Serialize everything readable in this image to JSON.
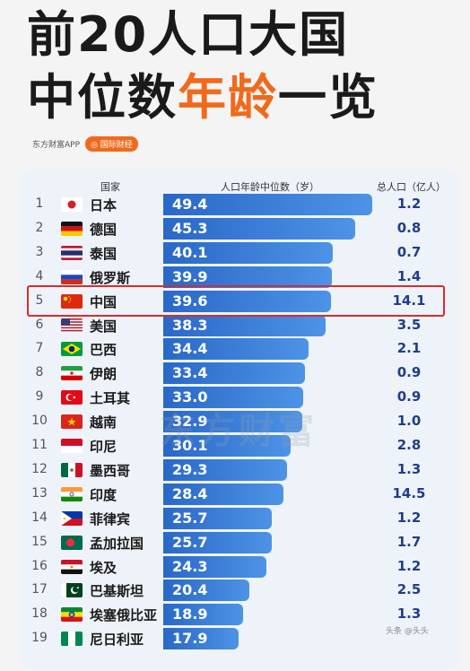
{
  "title": {
    "line1": "前20人口大国",
    "line2_pre": "中位数",
    "line2_hl": "年龄",
    "line2_post": "一览"
  },
  "source": {
    "name": "东方财富APP",
    "tag": "◎ 国际财经"
  },
  "headers": {
    "country": "国家",
    "median": "人口年龄中位数（岁）",
    "population": "总人口（亿人）"
  },
  "watermark": "东方财富",
  "footer": "头条 @头头",
  "colors": {
    "bar": "#2a68c8",
    "highlight": "#d62d2d",
    "accent": "#f06a1c"
  },
  "chart_data": {
    "type": "bar",
    "title": "前20人口大国中位数年龄一览",
    "orientation": "horizontal",
    "highlighted_rank": 5,
    "rows": [
      {
        "rank": "1",
        "country": "日本",
        "median_age": "49.4",
        "population": "1.2",
        "flag": "japan"
      },
      {
        "rank": "2",
        "country": "德国",
        "median_age": "45.3",
        "population": "0.8",
        "flag": "germany"
      },
      {
        "rank": "3",
        "country": "泰国",
        "median_age": "40.1",
        "population": "0.7",
        "flag": "thailand"
      },
      {
        "rank": "4",
        "country": "俄罗斯",
        "median_age": "39.9",
        "population": "1.4",
        "flag": "russia"
      },
      {
        "rank": "5",
        "country": "中国",
        "median_age": "39.6",
        "population": "14.1",
        "flag": "china"
      },
      {
        "rank": "6",
        "country": "美国",
        "median_age": "38.3",
        "population": "3.5",
        "flag": "usa"
      },
      {
        "rank": "7",
        "country": "巴西",
        "median_age": "34.4",
        "population": "2.1",
        "flag": "brazil"
      },
      {
        "rank": "8",
        "country": "伊朗",
        "median_age": "33.4",
        "population": "0.9",
        "flag": "iran"
      },
      {
        "rank": "9",
        "country": "土耳其",
        "median_age": "33.0",
        "population": "0.9",
        "flag": "turkey"
      },
      {
        "rank": "10",
        "country": "越南",
        "median_age": "32.9",
        "population": "1.0",
        "flag": "vietnam"
      },
      {
        "rank": "11",
        "country": "印尼",
        "median_age": "30.1",
        "population": "2.8",
        "flag": "indonesia"
      },
      {
        "rank": "12",
        "country": "墨西哥",
        "median_age": "29.3",
        "population": "1.3",
        "flag": "mexico"
      },
      {
        "rank": "13",
        "country": "印度",
        "median_age": "28.4",
        "population": "14.5",
        "flag": "india"
      },
      {
        "rank": "14",
        "country": "菲律宾",
        "median_age": "25.7",
        "population": "1.2",
        "flag": "philippines"
      },
      {
        "rank": "15",
        "country": "孟加拉国",
        "median_age": "25.7",
        "population": "1.7",
        "flag": "bangladesh"
      },
      {
        "rank": "16",
        "country": "埃及",
        "median_age": "24.3",
        "population": "1.2",
        "flag": "egypt"
      },
      {
        "rank": "17",
        "country": "巴基斯坦",
        "median_age": "20.4",
        "population": "2.5",
        "flag": "pakistan"
      },
      {
        "rank": "18",
        "country": "埃塞俄比亚",
        "median_age": "18.9",
        "population": "1.3",
        "flag": "ethiopia"
      },
      {
        "rank": "19",
        "country": "尼日利亚",
        "median_age": "17.9",
        "population": "",
        "flag": "nigeria"
      }
    ]
  }
}
